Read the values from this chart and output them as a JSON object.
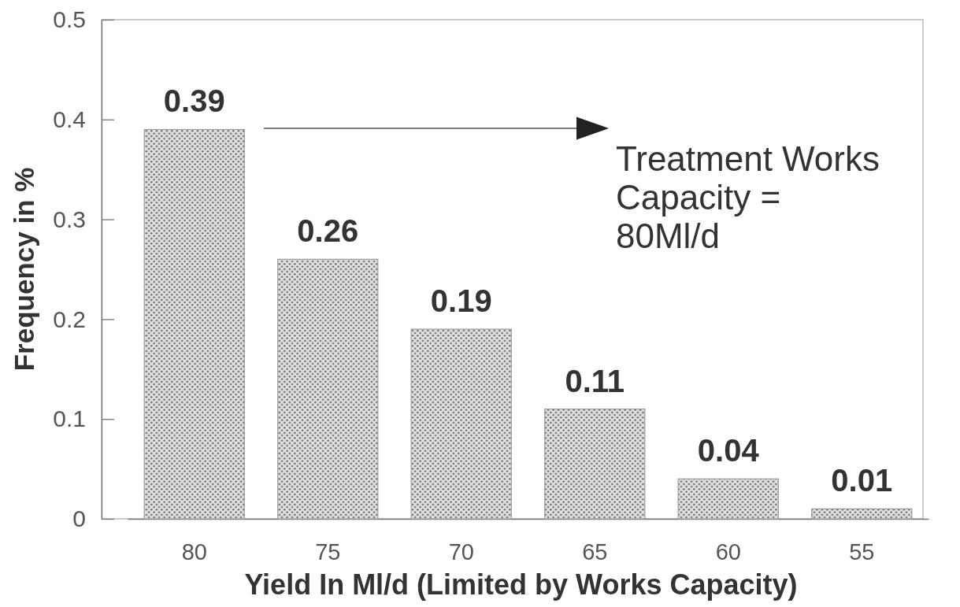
{
  "chart_data": {
    "type": "bar",
    "categories": [
      "80",
      "75",
      "70",
      "65",
      "60",
      "55"
    ],
    "values": [
      0.39,
      0.26,
      0.19,
      0.11,
      0.04,
      0.01
    ],
    "color": "#9c9c9c",
    "xlabel": "Yield In Ml/d (Limited by Works Capacity)",
    "ylabel": "Frequency in %",
    "ylim": [
      0,
      0.5
    ],
    "yticks": [
      0,
      0.1,
      0.2,
      0.3,
      0.4,
      0.5
    ],
    "data_labels": true,
    "annotations": [
      "Treatment Works\nCapacity =\n80Ml/d"
    ]
  }
}
